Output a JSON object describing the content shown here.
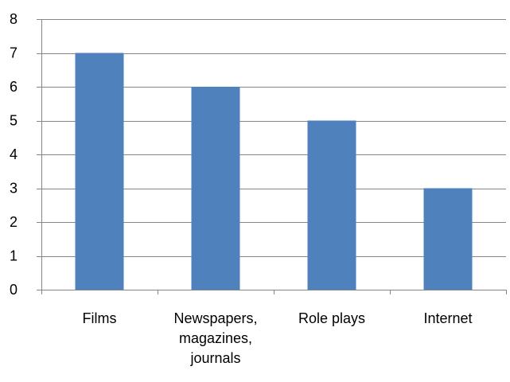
{
  "chart_data": {
    "type": "bar",
    "categories": [
      "Films",
      "Newspapers, magazines, journals",
      "Role plays",
      "Internet"
    ],
    "category_label_lines": [
      [
        "Films"
      ],
      [
        "Newspapers,",
        "magazines,",
        "journals"
      ],
      [
        "Role plays"
      ],
      [
        "Internet"
      ]
    ],
    "values": [
      7,
      6,
      5,
      3
    ],
    "ylim": [
      0,
      8
    ],
    "yticks": [
      "0",
      "1",
      "2",
      "3",
      "4",
      "5",
      "6",
      "7",
      "8"
    ],
    "grid": true,
    "legend": "none",
    "title": "",
    "xlabel": "",
    "ylabel": "",
    "colors": {
      "bar": "#4f81bd",
      "grid": "#868686",
      "axis": "#868686"
    }
  }
}
